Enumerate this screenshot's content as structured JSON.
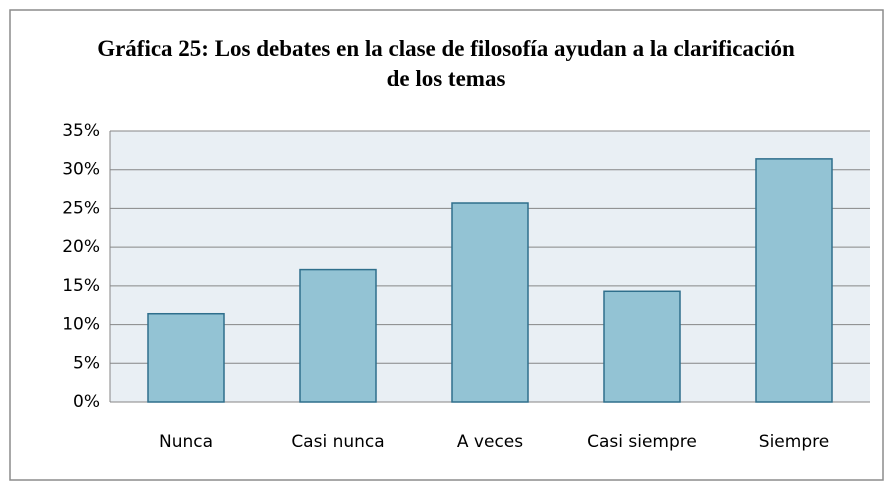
{
  "chart_data": {
    "type": "bar",
    "title": "Gráfica 25: Los debates en la clase de filosofía ayudan a la clarificación de los temas",
    "categories": [
      "Nunca",
      "Casi nunca",
      "A veces",
      "Casi siempre",
      "Siempre"
    ],
    "values": [
      11.4,
      17.1,
      25.7,
      14.3,
      31.4
    ],
    "color": "#93c3d4",
    "ylim": [
      0,
      35
    ],
    "yticks": [
      {
        "value": 0,
        "label": "0%"
      },
      {
        "value": 5,
        "label": "5%"
      },
      {
        "value": 10,
        "label": "10%"
      },
      {
        "value": 15,
        "label": "15%"
      },
      {
        "value": 20,
        "label": "20%"
      },
      {
        "value": 25,
        "label": "25%"
      },
      {
        "value": 30,
        "label": "30%"
      },
      {
        "value": 35,
        "label": "35%"
      }
    ],
    "grid": true
  }
}
